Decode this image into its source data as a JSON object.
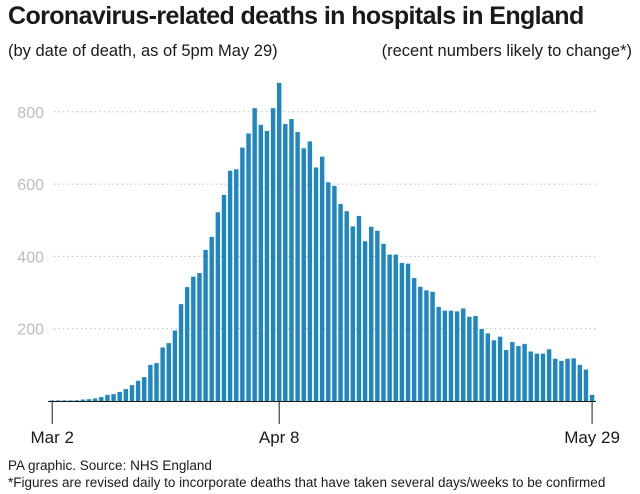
{
  "title": "Coronavirus-related deaths in hospitals in England",
  "subtitle_left": "(by date of death, as of 5pm May 29)",
  "subtitle_right": "(recent numbers likely to change*)",
  "footer_source": "PA graphic. Source: NHS England",
  "footer_note": "*Figures are revised daily to incorporate deaths that have taken several days/weeks to be confirmed",
  "bar_color": "#1f86c0",
  "chart_data": {
    "type": "bar",
    "title": "Coronavirus-related deaths in hospitals in England",
    "xlabel": "",
    "ylabel": "",
    "ylim": [
      0,
      880
    ],
    "yticks": [
      200,
      400,
      600,
      800
    ],
    "xtick_labels": [
      {
        "index": 0,
        "label": "Mar 2"
      },
      {
        "index": 37,
        "label": "Apr 8"
      },
      {
        "index": 88,
        "label": "May 29"
      }
    ],
    "grid": true,
    "series": [
      {
        "values": [
          1,
          0,
          1,
          1,
          2,
          4,
          5,
          7,
          11,
          17,
          19,
          25,
          33,
          44,
          56,
          66,
          100,
          105,
          148,
          160,
          195,
          268,
          315,
          344,
          354,
          418,
          454,
          522,
          570,
          637,
          641,
          701,
          740,
          810,
          764,
          747,
          810,
          880,
          766,
          780,
          744,
          699,
          718,
          646,
          676,
          605,
          595,
          545,
          525,
          483,
          512,
          442,
          482,
          471,
          435,
          405,
          405,
          382,
          380,
          340,
          316,
          306,
          302,
          260,
          250,
          250,
          248,
          256,
          233,
          235,
          199,
          187,
          168,
          178,
          141,
          163,
          152,
          158,
          137,
          131,
          131,
          143,
          117,
          111,
          117,
          118,
          100,
          87,
          17
        ]
      }
    ]
  }
}
